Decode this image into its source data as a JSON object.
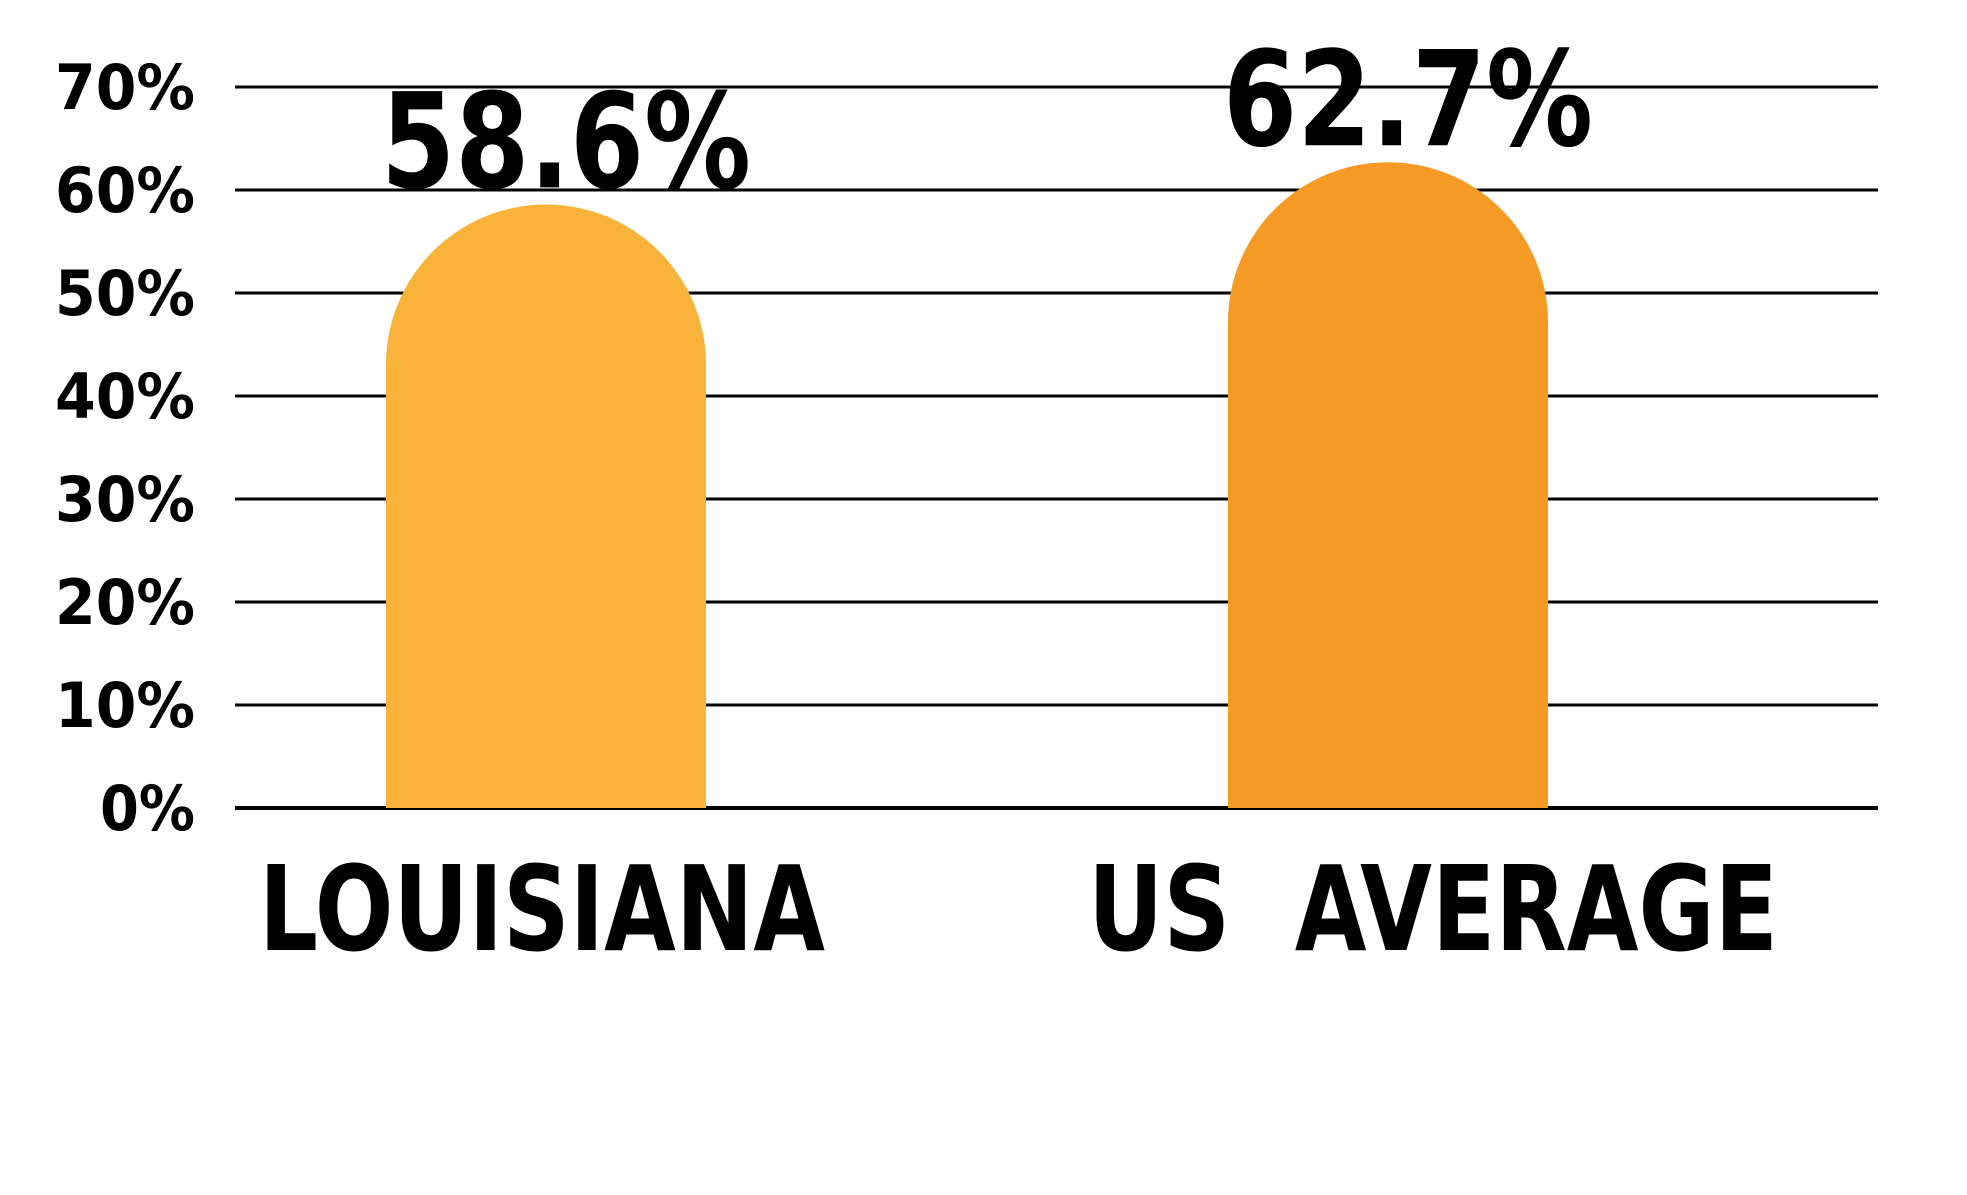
{
  "chart_data": {
    "type": "bar",
    "title": "",
    "xlabel": "",
    "ylabel": "",
    "categories": [
      "LOUISIANA",
      "US  AVERAGE"
    ],
    "values": [
      58.6,
      62.7
    ],
    "value_labels": [
      "58.6%",
      "62.7%"
    ],
    "ylim": [
      0,
      70
    ],
    "yticks": [
      0,
      10,
      20,
      30,
      40,
      50,
      60,
      70
    ],
    "ytick_labels": [
      "0%",
      "10%",
      "20%",
      "30%",
      "40%",
      "50%",
      "60%",
      "70%"
    ],
    "grid": true,
    "legend": "none",
    "bar_shape": "rounded-top",
    "colors": [
      "#F9B23A",
      "#F59A25"
    ],
    "grid_color": "#000000",
    "text_color": "#000000"
  }
}
